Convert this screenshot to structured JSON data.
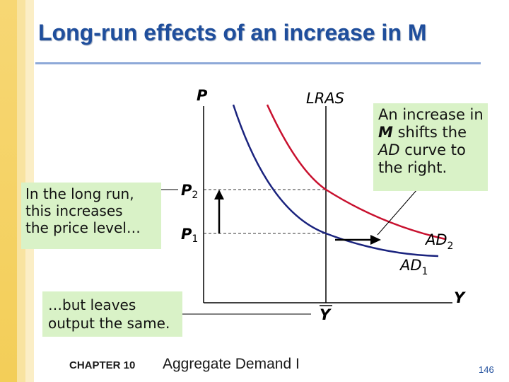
{
  "slide": {
    "title": "Long-run effects of an increase in M",
    "footer_chapter": "CHAPTER 10",
    "footer_book": "Aggregate Demand I",
    "page_number": "146"
  },
  "diagram": {
    "y_axis_label": "P",
    "x_axis_label": "Y",
    "lras_label": "LRAS",
    "ybar_label": "Y",
    "p2_label": "P",
    "p2_sub": "2",
    "p1_label": "P",
    "p1_sub": "1",
    "ad2_label": "AD",
    "ad2_sub": "2",
    "ad1_label": "AD",
    "ad1_sub": "1",
    "colors": {
      "ad1": "#1a237e",
      "ad2": "#c8102e",
      "axis": "#000000",
      "dashed": "#333333",
      "box": "#d9f2c7"
    }
  },
  "callouts": {
    "right": {
      "line1": "An increase in",
      "m_word": "M",
      "line2_rest": " shifts the",
      "ad_word": "AD",
      "line3_rest": " curve to",
      "line4": "the right."
    },
    "left": {
      "line1": "In the long run,",
      "line2": "this increases",
      "line3": "the price level…"
    },
    "bottom": {
      "line1": "…but leaves",
      "line2": "output the same."
    }
  }
}
